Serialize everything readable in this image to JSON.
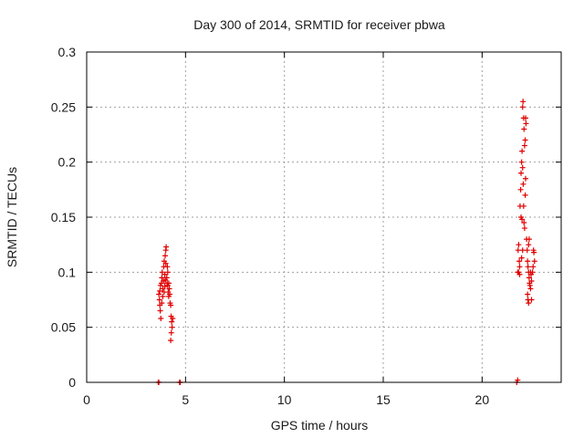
{
  "chart_data": {
    "type": "scatter",
    "title": "Day 300 of 2014, SRMTID for receiver pbwa",
    "xlabel": "GPS time / hours",
    "ylabel": "SRMTID / TECUs",
    "xlim": [
      0,
      24
    ],
    "ylim": [
      0,
      0.3
    ],
    "xticks": [
      0,
      5,
      10,
      15,
      20
    ],
    "yticks": [
      0,
      0.05,
      0.1,
      0.15,
      0.2,
      0.25,
      0.3
    ],
    "xtick_labels": [
      "0",
      "5",
      "10",
      "15",
      "20"
    ],
    "ytick_labels": [
      "0",
      "0.05",
      "0.1",
      "0.15",
      "0.2",
      "0.25",
      "0.3"
    ],
    "grid": true,
    "marker": "+",
    "series": [
      {
        "color": "#e00000",
        "points": [
          [
            3.62,
            0.0
          ],
          [
            3.65,
            0.0
          ],
          [
            4.7,
            0.0
          ],
          [
            4.73,
            0.0
          ],
          [
            21.75,
            0.0
          ],
          [
            21.8,
            0.002
          ],
          [
            3.65,
            0.08
          ],
          [
            3.68,
            0.075
          ],
          [
            3.7,
            0.07
          ],
          [
            3.72,
            0.065
          ],
          [
            3.75,
            0.058
          ],
          [
            3.73,
            0.088
          ],
          [
            3.78,
            0.09
          ],
          [
            3.8,
            0.095
          ],
          [
            3.82,
            0.1
          ],
          [
            3.85,
            0.085
          ],
          [
            3.88,
            0.092
          ],
          [
            3.9,
            0.105
          ],
          [
            3.92,
            0.11
          ],
          [
            3.95,
            0.098
          ],
          [
            3.97,
            0.115
          ],
          [
            4.0,
            0.12
          ],
          [
            4.02,
            0.123
          ],
          [
            4.0,
            0.108
          ],
          [
            3.98,
            0.093
          ],
          [
            4.05,
            0.095
          ],
          [
            4.07,
            0.09
          ],
          [
            4.1,
            0.088
          ],
          [
            4.12,
            0.082
          ],
          [
            4.15,
            0.078
          ],
          [
            4.18,
            0.085
          ],
          [
            4.2,
            0.08
          ],
          [
            4.22,
            0.072
          ],
          [
            4.25,
            0.07
          ],
          [
            4.27,
            0.06
          ],
          [
            4.3,
            0.055
          ],
          [
            4.32,
            0.05
          ],
          [
            4.28,
            0.045
          ],
          [
            4.25,
            0.038
          ],
          [
            4.35,
            0.058
          ],
          [
            4.1,
            0.1
          ],
          [
            4.08,
            0.105
          ],
          [
            3.92,
            0.082
          ],
          [
            3.85,
            0.078
          ],
          [
            3.8,
            0.072
          ],
          [
            3.7,
            0.083
          ],
          [
            3.95,
            0.087
          ],
          [
            4.15,
            0.09
          ],
          [
            21.8,
            0.1
          ],
          [
            21.82,
            0.12
          ],
          [
            21.85,
            0.125
          ],
          [
            21.88,
            0.11
          ],
          [
            21.9,
            0.098
          ],
          [
            21.92,
            0.16
          ],
          [
            21.95,
            0.175
          ],
          [
            21.97,
            0.19
          ],
          [
            22.0,
            0.2
          ],
          [
            22.02,
            0.21
          ],
          [
            22.05,
            0.195
          ],
          [
            22.08,
            0.18
          ],
          [
            22.1,
            0.16
          ],
          [
            22.12,
            0.145
          ],
          [
            22.15,
            0.14
          ],
          [
            22.05,
            0.25
          ],
          [
            22.07,
            0.255
          ],
          [
            22.1,
            0.24
          ],
          [
            22.12,
            0.23
          ],
          [
            22.15,
            0.215
          ],
          [
            22.18,
            0.22
          ],
          [
            22.2,
            0.24
          ],
          [
            22.22,
            0.235
          ],
          [
            22.2,
            0.185
          ],
          [
            22.18,
            0.17
          ],
          [
            22.25,
            0.13
          ],
          [
            22.28,
            0.12
          ],
          [
            22.3,
            0.11
          ],
          [
            22.32,
            0.105
          ],
          [
            22.35,
            0.1
          ],
          [
            22.38,
            0.095
          ],
          [
            22.4,
            0.09
          ],
          [
            22.42,
            0.088
          ],
          [
            22.45,
            0.085
          ],
          [
            22.3,
            0.08
          ],
          [
            22.32,
            0.075
          ],
          [
            22.35,
            0.072
          ],
          [
            22.5,
            0.075
          ],
          [
            22.55,
            0.1
          ],
          [
            22.58,
            0.105
          ],
          [
            22.6,
            0.12
          ],
          [
            22.62,
            0.118
          ],
          [
            22.65,
            0.11
          ],
          [
            22.5,
            0.092
          ],
          [
            22.48,
            0.098
          ],
          [
            22.45,
            0.1
          ],
          [
            22.35,
            0.125
          ],
          [
            22.38,
            0.13
          ],
          [
            21.85,
            0.1
          ],
          [
            21.9,
            0.105
          ],
          [
            22.0,
            0.113
          ],
          [
            22.05,
            0.12
          ],
          [
            21.97,
            0.15
          ],
          [
            22.02,
            0.148
          ]
        ]
      }
    ]
  }
}
